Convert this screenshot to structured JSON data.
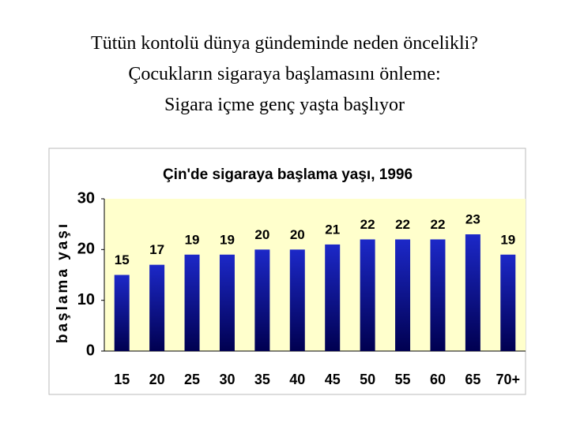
{
  "slide_text": [
    "Tütün kontolü dünya gündeminde neden öncelikli?",
    "Çocukların sigaraya başlamasını önleme:",
    "Sigara içme genç yaşta başlıyor"
  ],
  "chart_data": {
    "type": "bar",
    "title": "Çin'de sigaraya başlama yaşı, 1996",
    "y_label": "başlama yaşı",
    "categories": [
      "15",
      "20",
      "25",
      "30",
      "35",
      "40",
      "45",
      "50",
      "55",
      "60",
      "65",
      "70+"
    ],
    "values": [
      15,
      17,
      19,
      19,
      20,
      20,
      21,
      22,
      22,
      22,
      23,
      19
    ],
    "color": "#1c28c8",
    "plot_background": "#ffffcc",
    "ylim": [
      0,
      30
    ],
    "yticks": [
      0,
      10,
      20,
      30
    ],
    "grid": false
  }
}
